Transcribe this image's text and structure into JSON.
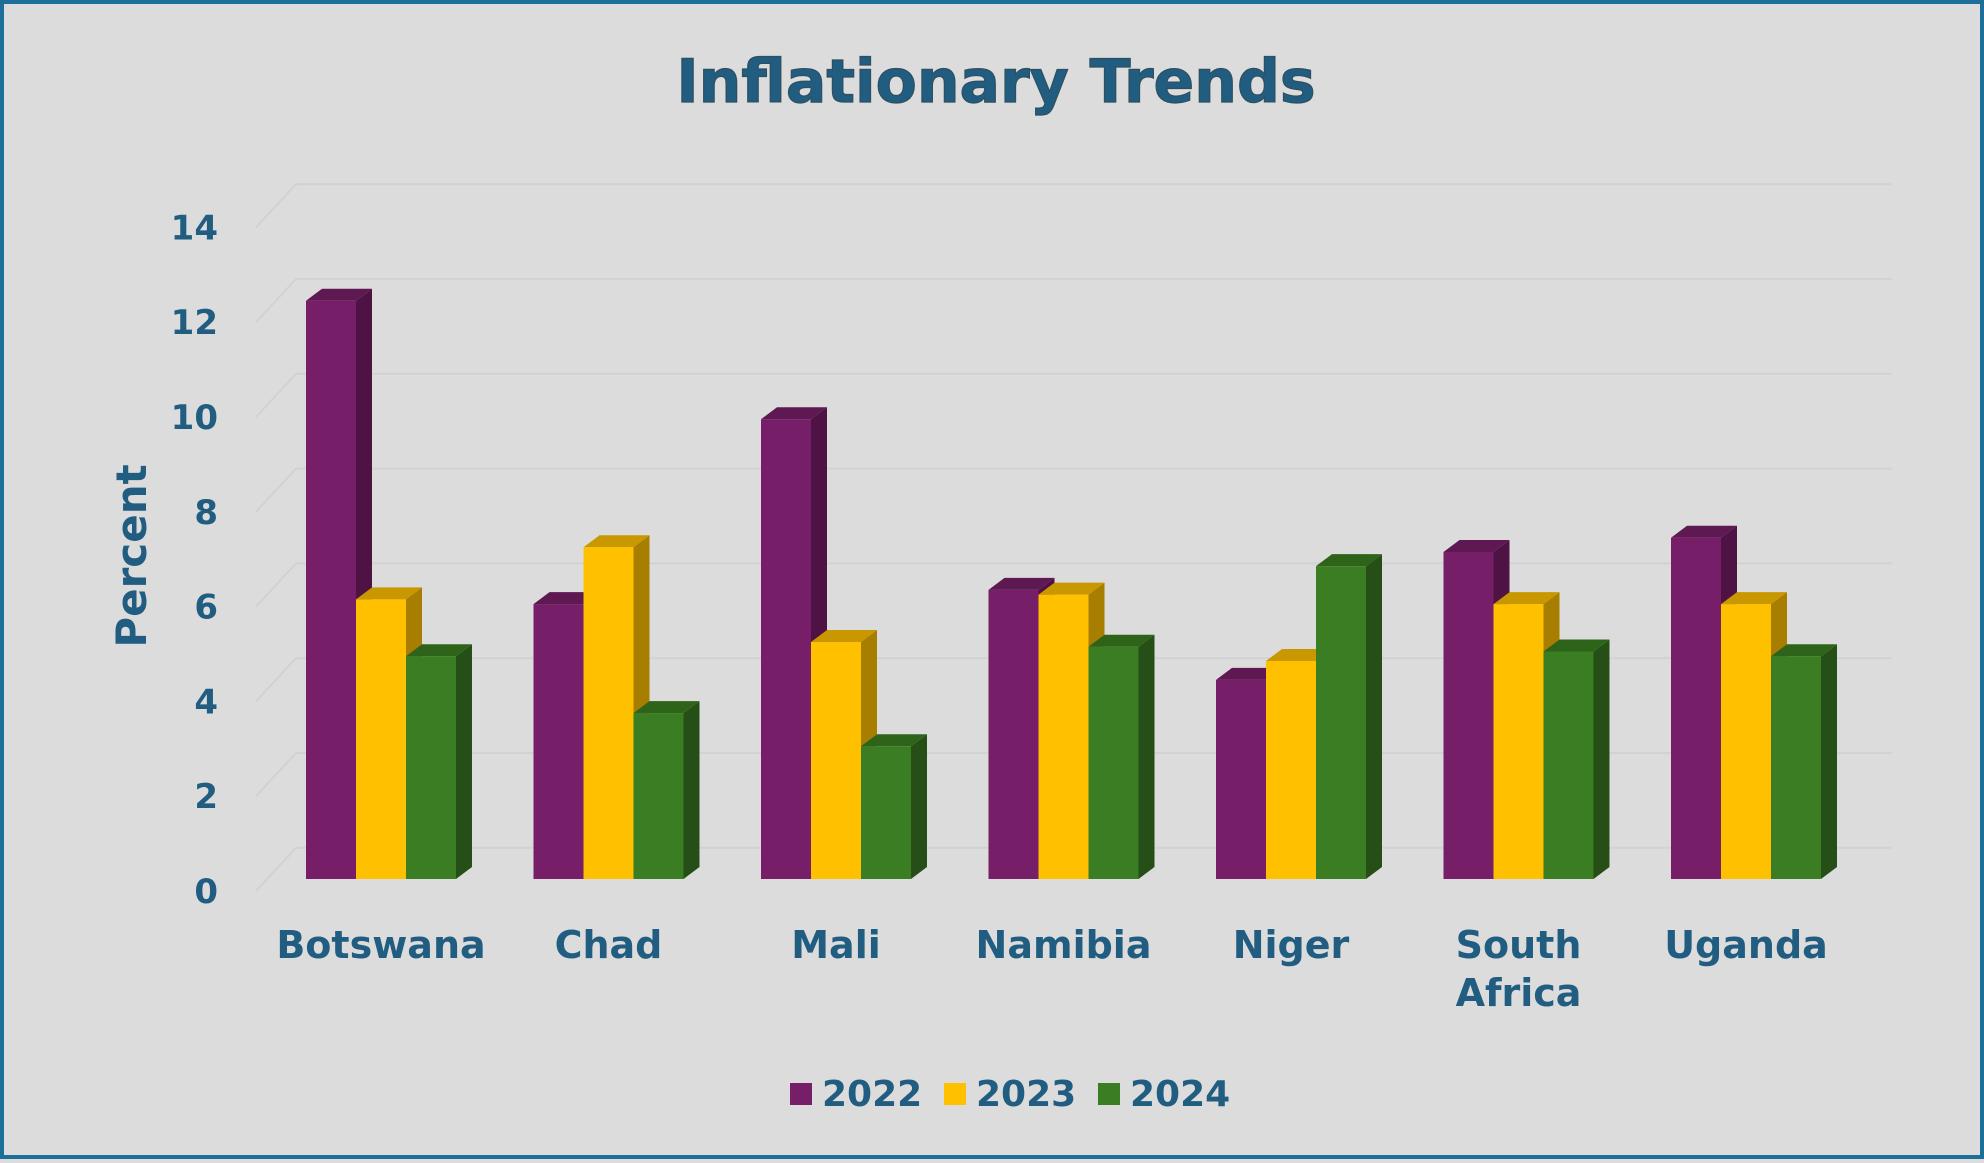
{
  "colors": {
    "background": "#dcdcdc",
    "border": "#1e6e9a",
    "text": "#215d80",
    "gridline": "#d2d2d2",
    "series": {
      "2022": {
        "front": "#761e68",
        "side": "#4e1244",
        "top": "#5e1852"
      },
      "2023": {
        "front": "#ffc000",
        "side": "#a87e00",
        "top": "#c99700"
      },
      "2024": {
        "front": "#3a7d22",
        "side": "#264f17",
        "top": "#2e6419"
      }
    }
  },
  "chart_data": {
    "type": "bar",
    "style": "3d-clustered-column",
    "title": "Inflationary Trends",
    "ylabel": "Percent",
    "xlabel": "",
    "ylim": [
      0,
      14
    ],
    "yticks": [
      "0",
      "2",
      "4",
      "6",
      "8",
      "10",
      "12",
      "14"
    ],
    "grid": true,
    "legend_position": "bottom",
    "categories": [
      "Botswana",
      "Chad",
      "Mali",
      "Namibia",
      "Niger",
      "South Africa",
      "Uganda"
    ],
    "category_labels": [
      [
        "Botswana"
      ],
      [
        "Chad"
      ],
      [
        "Mali"
      ],
      [
        "Namibia"
      ],
      [
        "Niger"
      ],
      [
        "South",
        "Africa"
      ],
      [
        "Uganda"
      ]
    ],
    "series": [
      {
        "name": "2022",
        "values": [
          12.2,
          5.8,
          9.7,
          6.1,
          4.2,
          6.9,
          7.2
        ]
      },
      {
        "name": "2023",
        "values": [
          5.9,
          7.0,
          5.0,
          6.0,
          4.6,
          5.8,
          5.8
        ]
      },
      {
        "name": "2024",
        "values": [
          4.7,
          3.5,
          2.8,
          4.9,
          6.6,
          4.8,
          4.7
        ]
      }
    ]
  }
}
